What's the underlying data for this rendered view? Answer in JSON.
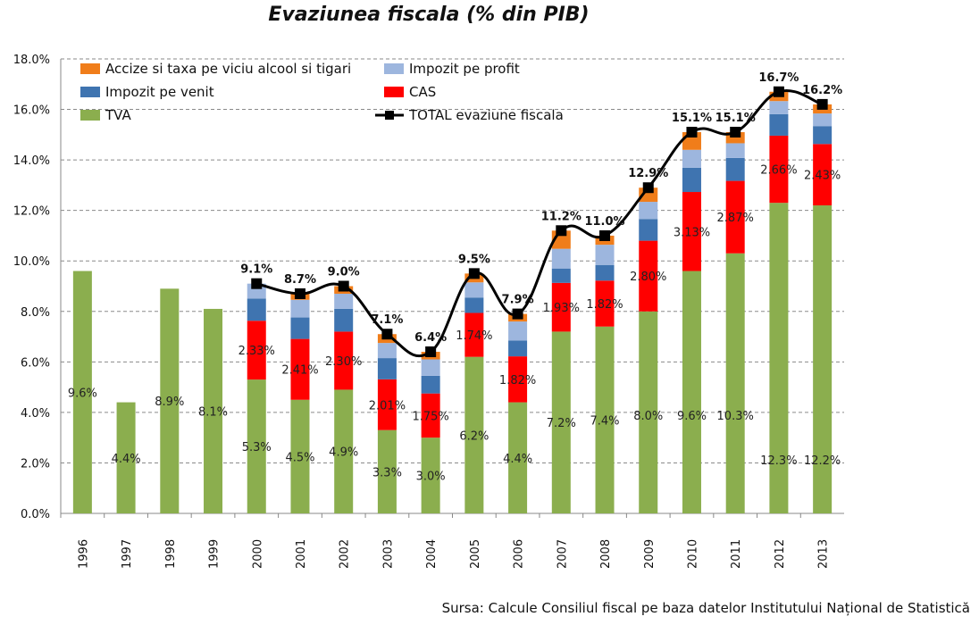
{
  "chart_data": {
    "type": "bar",
    "stacked": true,
    "title": "Evaziunea fiscala (% din PIB)",
    "xlabel": "",
    "ylabel": "",
    "ylim": [
      0,
      18
    ],
    "yticks": [
      "0.0%",
      "2.0%",
      "4.0%",
      "6.0%",
      "8.0%",
      "10.0%",
      "12.0%",
      "14.0%",
      "16.0%",
      "18.0%"
    ],
    "grid": true,
    "legend_position": "top-left",
    "categories": [
      "1996",
      "1997",
      "1998",
      "1999",
      "2000",
      "2001",
      "2002",
      "2003",
      "2004",
      "2005",
      "2006",
      "2007",
      "2008",
      "2009",
      "2010",
      "2011",
      "2012",
      "2013"
    ],
    "series": [
      {
        "name": "TVA",
        "color": "#8BAE4E",
        "values": [
          9.6,
          4.4,
          8.9,
          8.1,
          5.3,
          4.5,
          4.9,
          3.3,
          3.0,
          6.2,
          4.4,
          7.2,
          7.4,
          8.0,
          9.6,
          10.3,
          12.3,
          12.2
        ],
        "labels": [
          "9.6%",
          "4.4%",
          "8.9%",
          "8.1%",
          "5.3%",
          "4.5%",
          "4.9%",
          "3.3%",
          "3.0%",
          "6.2%",
          "4.4%",
          "7.2%",
          "7.4%",
          "8.0%",
          "9.6%",
          "10.3%",
          "12.3%",
          "12.2%"
        ]
      },
      {
        "name": "CAS",
        "color": "#FF0000",
        "values": [
          0,
          0,
          0,
          0,
          2.33,
          2.41,
          2.3,
          2.01,
          1.75,
          1.74,
          1.82,
          1.93,
          1.82,
          2.8,
          3.13,
          2.87,
          2.66,
          2.43
        ],
        "labels": [
          "",
          "",
          "",
          "",
          "2.33%",
          "2.41%",
          "2.30%",
          "2.01%",
          "1.75%",
          "1.74%",
          "1.82%",
          "1.93%",
          "1.82%",
          "2.80%",
          "3.13%",
          "2.87%",
          "2.66%",
          "2.43%"
        ]
      },
      {
        "name": "Impozit pe venit",
        "color": "#3F74B0",
        "values": [
          0,
          0,
          0,
          0,
          0.88,
          0.85,
          0.9,
          0.84,
          0.7,
          0.61,
          0.63,
          0.57,
          0.62,
          0.86,
          0.96,
          0.91,
          0.85,
          0.71
        ]
      },
      {
        "name": "Impozit pe profit",
        "color": "#9DB6DE",
        "values": [
          0,
          0,
          0,
          0,
          0.59,
          0.7,
          0.6,
          0.6,
          0.65,
          0.6,
          0.75,
          0.78,
          0.8,
          0.68,
          0.71,
          0.58,
          0.52,
          0.5
        ]
      },
      {
        "name": "Accize si taxa pe viciu alcool si tigari",
        "color": "#F07D1A",
        "values": [
          0,
          0,
          0,
          0,
          0,
          0.24,
          0.3,
          0.35,
          0.3,
          0.35,
          0.3,
          0.72,
          0.36,
          0.56,
          0.7,
          0.44,
          0.37,
          0.36
        ]
      }
    ],
    "total_line": {
      "name": "TOTAL evaziune fiscala",
      "color": "#000000",
      "values": [
        null,
        null,
        null,
        null,
        9.1,
        8.7,
        9.0,
        7.1,
        6.4,
        9.5,
        7.9,
        11.2,
        11.0,
        12.9,
        15.1,
        15.1,
        16.7,
        16.2
      ],
      "labels": [
        "",
        "",
        "",
        "",
        "9.1%",
        "8.7%",
        "9.0%",
        "7.1%",
        "6.4%",
        "9.5%",
        "7.9%",
        "11.2%",
        "11.0%",
        "12.9%",
        "15.1%",
        "15.1%",
        "16.7%",
        "16.2%"
      ]
    },
    "legend": [
      {
        "label": "Accize si taxa pe viciu alcool si tigari",
        "color": "#F07D1A",
        "kind": "box"
      },
      {
        "label": "Impozit pe profit",
        "color": "#9DB6DE",
        "kind": "box"
      },
      {
        "label": "Impozit pe venit",
        "color": "#3F74B0",
        "kind": "box"
      },
      {
        "label": "CAS",
        "color": "#FF0000",
        "kind": "box"
      },
      {
        "label": "TVA",
        "color": "#8BAE4E",
        "kind": "box"
      },
      {
        "label": "TOTAL evaziune fiscala",
        "color": "#000000",
        "kind": "line"
      }
    ]
  },
  "source": "Sursa: Calcule Consiliul fiscal pe baza datelor Institutului Național de Statistică"
}
